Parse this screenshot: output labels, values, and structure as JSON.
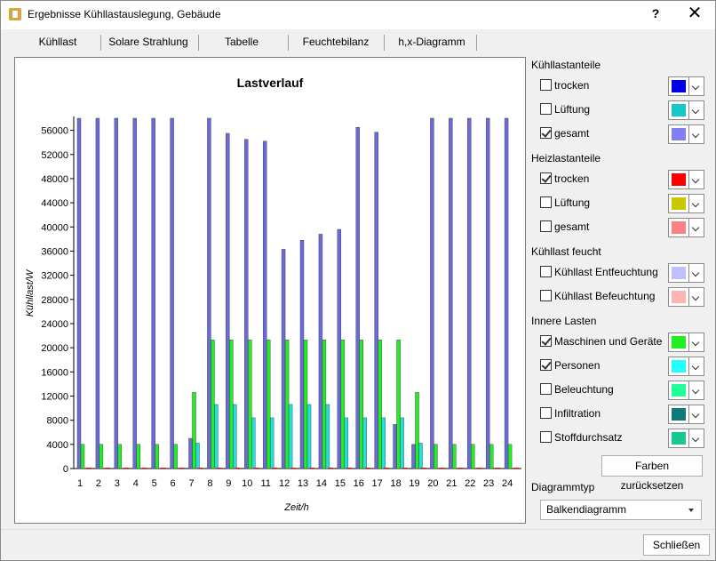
{
  "window": {
    "title": "Ergebnisse Kühllastauslegung, Gebäude",
    "help": "?",
    "close": "✕"
  },
  "tabs": [
    "Kühllast",
    "Solare Strahlung",
    "Tabelle",
    "Feuchtebilanz",
    "h,x-Diagramm"
  ],
  "panel": {
    "kuehllastanteile": {
      "label": "Kühllastanteile",
      "items": [
        {
          "label": "trocken",
          "checked": false,
          "color": "#0000e6"
        },
        {
          "label": "Lüftung",
          "checked": false,
          "color": "#18c8c8"
        },
        {
          "label": "gesamt",
          "checked": true,
          "color": "#8080f0"
        }
      ]
    },
    "heizlastanteile": {
      "label": "Heizlastanteile",
      "items": [
        {
          "label": "trocken",
          "checked": true,
          "color": "#ff0000"
        },
        {
          "label": "Lüftung",
          "checked": false,
          "color": "#c8c800"
        },
        {
          "label": "gesamt",
          "checked": false,
          "color": "#ff8080"
        }
      ]
    },
    "kuehllast_feucht": {
      "label": "Kühllast feucht",
      "items": [
        {
          "label": "Kühllast Entfeuchtung",
          "checked": false,
          "color": "#c0c0ff"
        },
        {
          "label": "Kühllast Befeuchtung",
          "checked": false,
          "color": "#ffb4b4"
        }
      ]
    },
    "innere_lasten": {
      "label": "Innere Lasten",
      "items": [
        {
          "label": "Maschinen und Geräte",
          "checked": true,
          "color": "#22ee22"
        },
        {
          "label": "Personen",
          "checked": true,
          "color": "#22ffff"
        },
        {
          "label": "Beleuchtung",
          "checked": false,
          "color": "#22ff99"
        },
        {
          "label": "Infiltration",
          "checked": false,
          "color": "#107878"
        },
        {
          "label": "Stoffdurchsatz",
          "checked": false,
          "color": "#18c890"
        }
      ]
    },
    "reset_button": "Farben zurücksetzen",
    "diagram_type_label": "Diagrammtyp",
    "diagram_type_value": "Balkendiagramm"
  },
  "close_button": "Schließen",
  "chart_data": {
    "type": "bar",
    "title": "Lastverlauf",
    "xlabel": "Zeit/h",
    "ylabel": "Kühllast/W",
    "ylim": [
      0,
      58000
    ],
    "yticks": [
      0,
      4000,
      8000,
      12000,
      16000,
      20000,
      24000,
      28000,
      32000,
      36000,
      40000,
      44000,
      48000,
      52000,
      56000
    ],
    "categories": [
      "1",
      "2",
      "3",
      "4",
      "5",
      "6",
      "7",
      "8",
      "9",
      "10",
      "11",
      "12",
      "13",
      "14",
      "15",
      "16",
      "17",
      "18",
      "19",
      "20",
      "21",
      "22",
      "23",
      "24"
    ],
    "series": [
      {
        "name": "gesamt",
        "color": "#6a6ad8",
        "values": [
          58000,
          58000,
          58000,
          58000,
          58000,
          58000,
          5000,
          58000,
          55500,
          54500,
          54200,
          36300,
          37800,
          38800,
          39600,
          56500,
          55700,
          7300,
          4000,
          58000,
          58000,
          58000,
          58000,
          58000
        ]
      },
      {
        "name": "Maschinen und Geräte",
        "color": "#22ee22",
        "values": [
          4000,
          4000,
          4000,
          4000,
          4000,
          4000,
          12600,
          21300,
          21300,
          21300,
          21300,
          21300,
          21300,
          21300,
          21300,
          21300,
          21300,
          21300,
          12600,
          4000,
          4000,
          4000,
          4000,
          4000
        ]
      },
      {
        "name": "Personen",
        "color": "#22e0e0",
        "values": [
          0,
          0,
          0,
          0,
          0,
          0,
          4200,
          10600,
          10600,
          8400,
          8400,
          10600,
          10600,
          10600,
          8400,
          8400,
          8400,
          8400,
          4200,
          0,
          0,
          0,
          0,
          0
        ]
      },
      {
        "name": "trocken",
        "color": "#ff0000",
        "values": [
          0,
          0,
          0,
          0,
          0,
          0,
          0,
          0,
          0,
          0,
          0,
          0,
          0,
          0,
          0,
          0,
          0,
          0,
          0,
          0,
          0,
          0,
          0,
          0
        ]
      }
    ],
    "grid": false,
    "legend": "none"
  }
}
